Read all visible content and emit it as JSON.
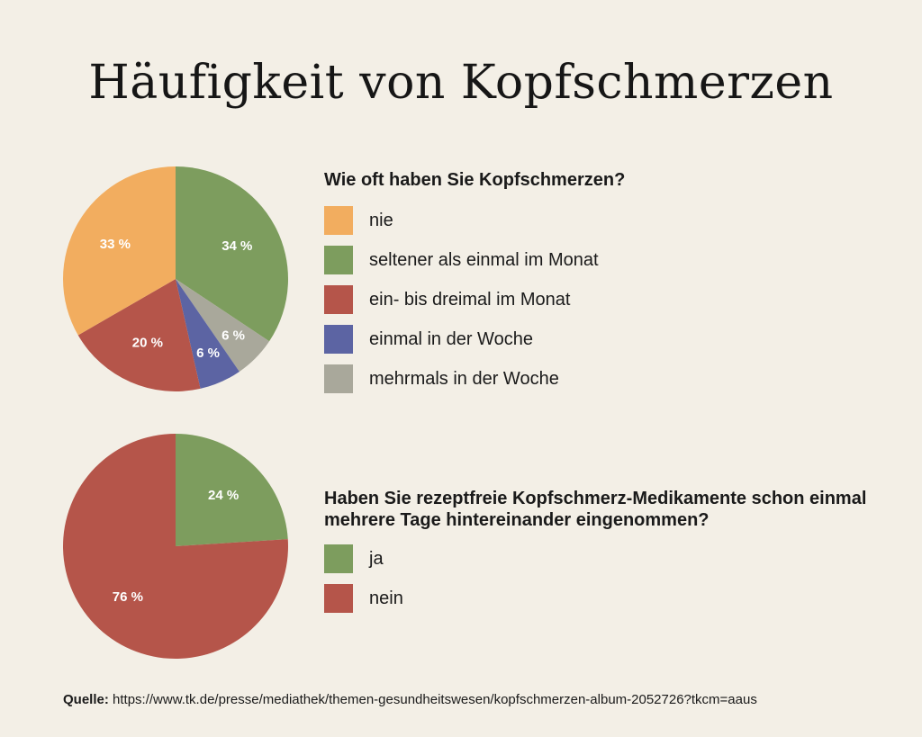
{
  "title": "Häufigkeit von Kopfschmerzen",
  "chart_data": [
    {
      "type": "pie",
      "title": "Wie oft haben Sie Kopfschmerzen?",
      "categories": [
        "nie",
        "seltener als einmal im Monat",
        "ein- bis dreimal im Monat",
        "einmal in der Woche",
        "mehrmals in der Woche"
      ],
      "values": [
        33,
        34,
        20,
        6,
        6
      ],
      "slice_order": [
        1,
        4,
        3,
        2,
        0
      ],
      "labels": [
        "33 %",
        "34 %",
        "20 %",
        "6 %",
        "6 %"
      ],
      "colors": [
        "#f2ad5f",
        "#7d9d5e",
        "#b5554a",
        "#5c64a3",
        "#a9a89b"
      ],
      "legend_position": "right"
    },
    {
      "type": "pie",
      "title": "Haben Sie rezeptfreie Kopfschmerz-Medikamente schon einmal mehrere Tage hintereinander eingenommen?",
      "categories": [
        "ja",
        "nein"
      ],
      "values": [
        24,
        76
      ],
      "slice_order": [
        0,
        1
      ],
      "labels": [
        "24 %",
        "76 %"
      ],
      "colors": [
        "#7d9d5e",
        "#b5554a"
      ],
      "legend_position": "right"
    }
  ],
  "source": {
    "label": "Quelle:",
    "url": "https://www.tk.de/presse/mediathek/themen-gesundheitswesen/kopfschmerzen-album-2052726?tkcm=aaus"
  }
}
